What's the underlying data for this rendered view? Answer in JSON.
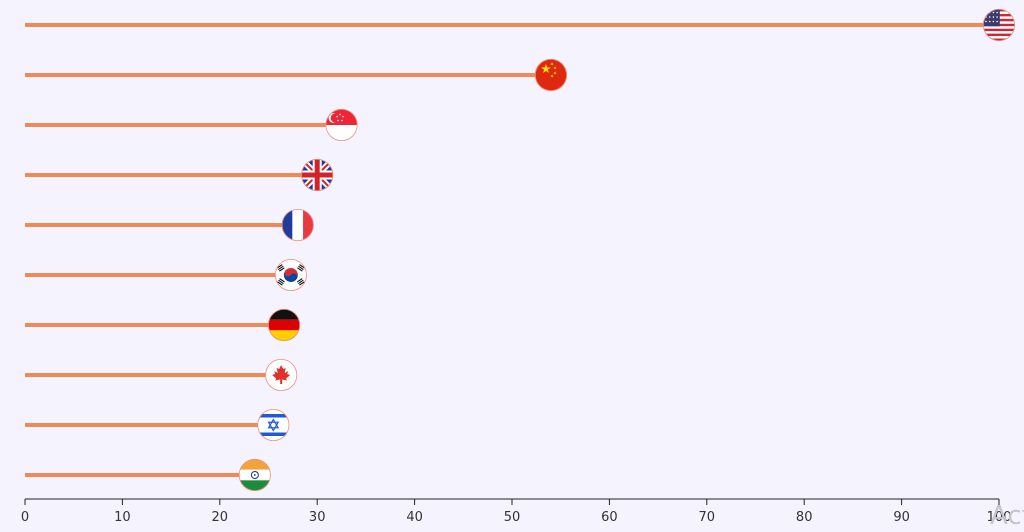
{
  "chart_data": {
    "type": "lollipop",
    "orientation": "horizontal",
    "stem_color": "#ee8a55",
    "xlim": [
      0,
      100
    ],
    "xticks": [
      0,
      10,
      20,
      30,
      40,
      50,
      60,
      70,
      80,
      90,
      100
    ],
    "xtick_labels": [
      "0",
      "10",
      "20",
      "30",
      "40",
      "50",
      "60",
      "70",
      "80",
      "90",
      "100"
    ],
    "grid": false,
    "legend": "none",
    "categories_shown_as": "flag icons",
    "points": [
      {
        "flag": "usa-flag-icon",
        "value": 100
      },
      {
        "flag": "china-flag-icon",
        "value": 54
      },
      {
        "flag": "singapore-flag-icon",
        "value": 32.5
      },
      {
        "flag": "uk-flag-icon",
        "value": 30
      },
      {
        "flag": "france-flag-icon",
        "value": 28
      },
      {
        "flag": "south-korea-flag-icon",
        "value": 27.3
      },
      {
        "flag": "germany-flag-icon",
        "value": 26.6
      },
      {
        "flag": "canada-flag-icon",
        "value": 26.3
      },
      {
        "flag": "israel-flag-icon",
        "value": 25.5
      },
      {
        "flag": "india-flag-icon",
        "value": 23.6
      }
    ]
  },
  "watermark": {
    "text": "Act"
  }
}
